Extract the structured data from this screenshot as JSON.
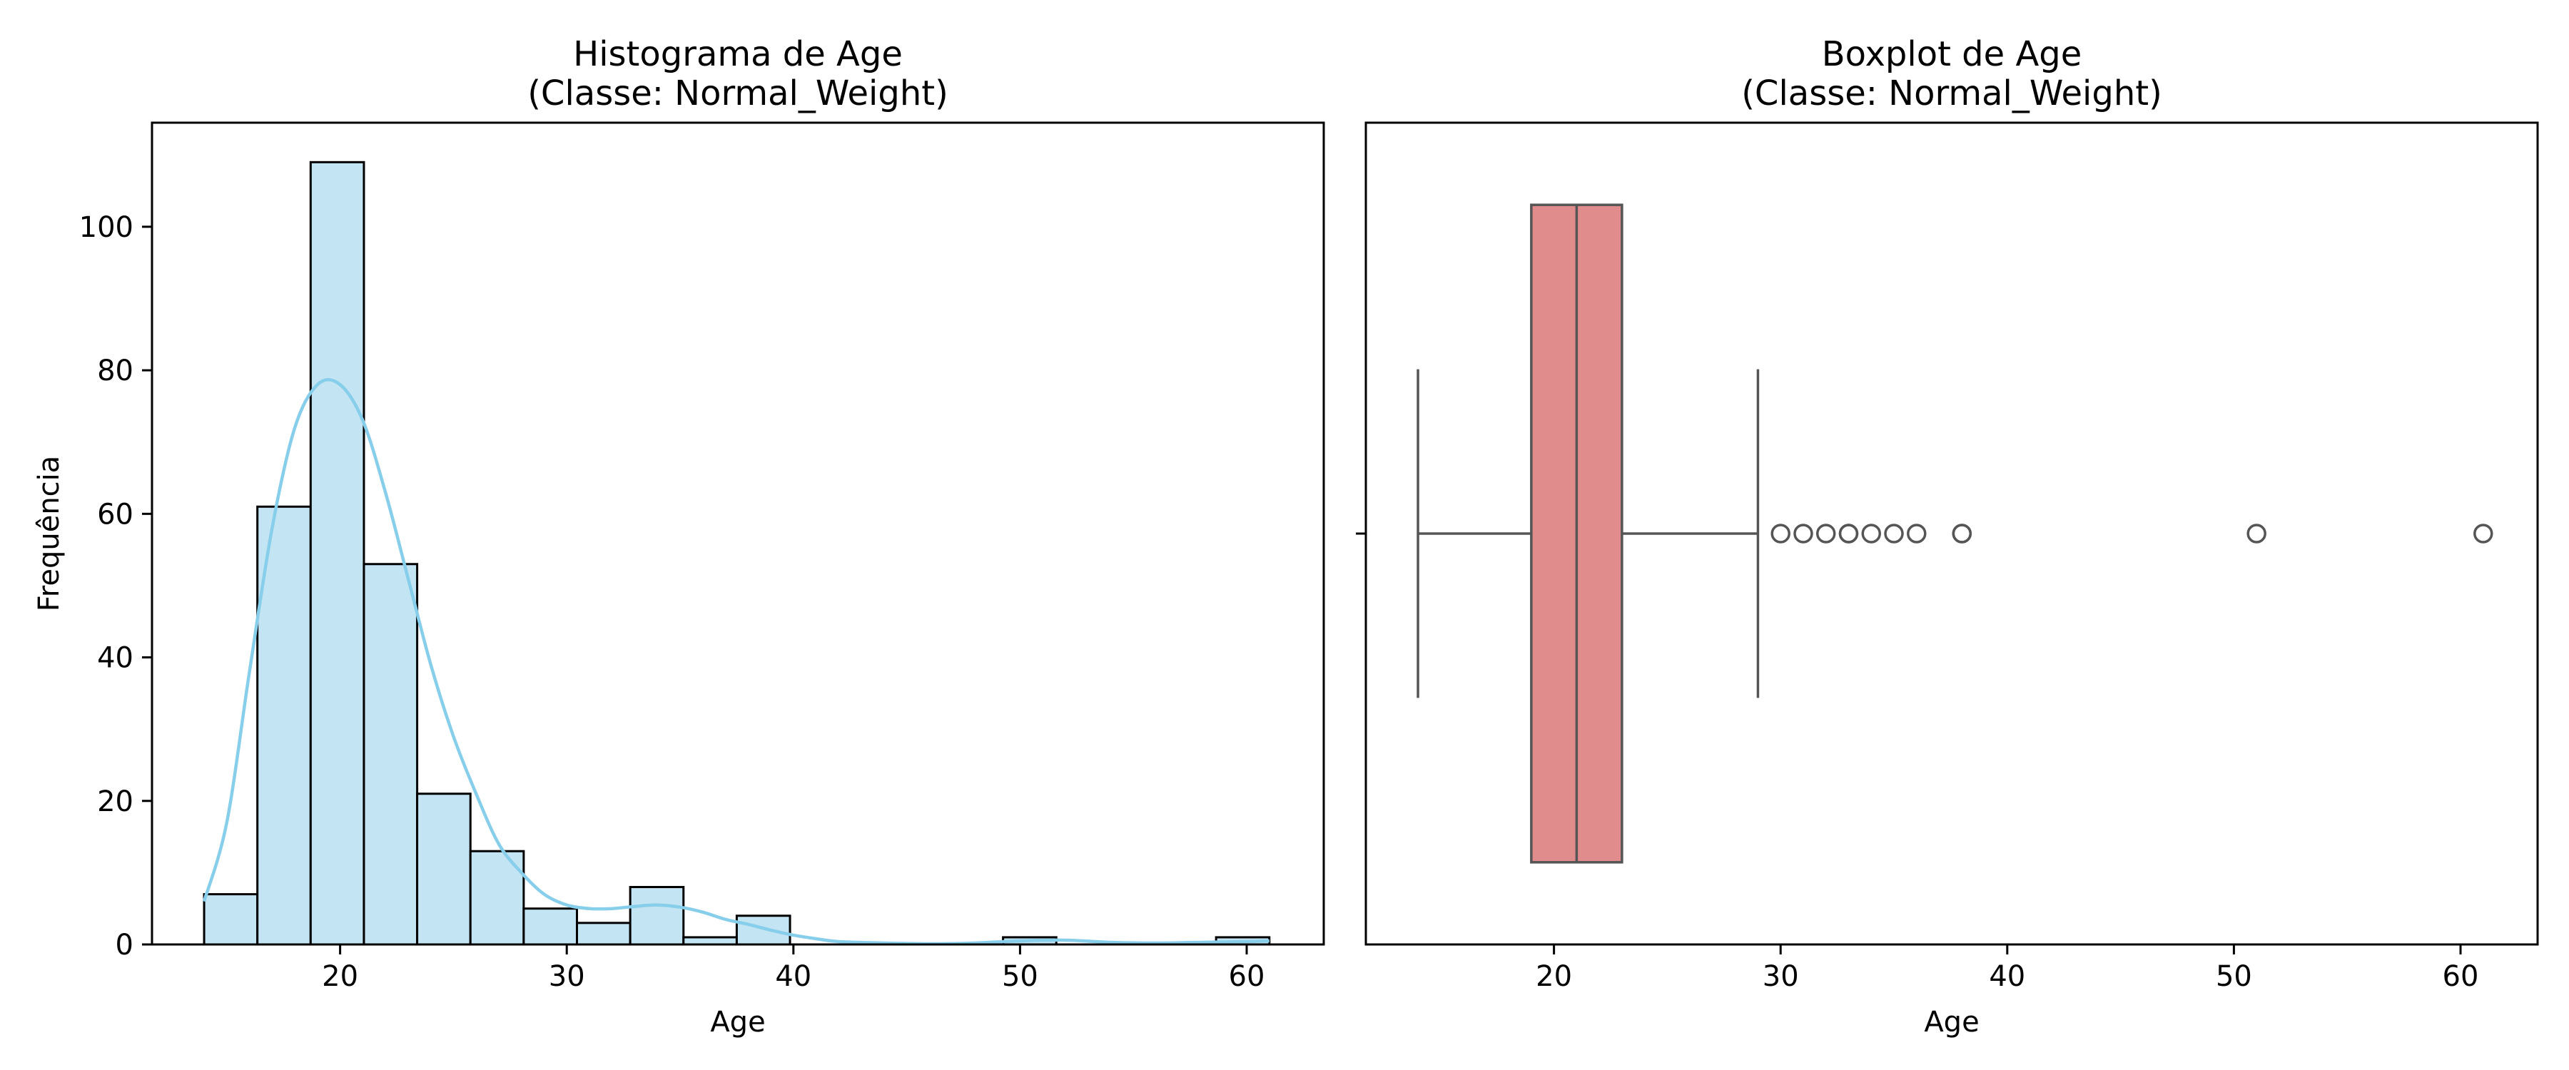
{
  "chart_data": [
    {
      "type": "bar",
      "title": "Histograma de Age\n(Classe: Normal_Weight)",
      "xlabel": "Age",
      "ylabel": "Frequência",
      "xlim": [
        11.7,
        63.4
      ],
      "ylim": [
        0,
        114.5
      ],
      "xticks": [
        20,
        30,
        40,
        50,
        60
      ],
      "yticks": [
        0,
        20,
        40,
        60,
        80,
        100
      ],
      "bin_edges": [
        14.0,
        16.35,
        18.7,
        21.05,
        23.4,
        25.75,
        28.1,
        30.45,
        32.8,
        35.15,
        37.5,
        39.85,
        42.2,
        44.55,
        46.9,
        49.25,
        51.6,
        53.95,
        56.3,
        58.65,
        61.0
      ],
      "values": [
        7,
        61,
        109,
        53,
        21,
        13,
        5,
        3,
        8,
        1,
        4,
        0,
        0,
        0,
        0,
        1,
        0,
        0,
        0,
        1
      ],
      "kde": {
        "x": [
          14,
          15,
          16,
          17,
          18,
          19,
          20,
          21,
          22,
          23,
          24,
          25,
          26,
          27,
          28,
          29,
          30,
          31,
          32,
          33,
          34,
          35,
          36,
          37,
          38,
          39,
          40,
          41,
          42,
          44,
          46,
          48,
          50,
          52,
          54,
          56,
          58,
          60,
          61
        ],
        "y": [
          6,
          17,
          38,
          58,
          72,
          78,
          78,
          73,
          63,
          51,
          39,
          29,
          21,
          14,
          10,
          7,
          5.5,
          5,
          5,
          5.3,
          5.5,
          5.2,
          4.5,
          3.5,
          2.8,
          2,
          1.3,
          0.8,
          0.4,
          0.2,
          0.1,
          0.2,
          0.5,
          0.6,
          0.3,
          0.2,
          0.3,
          0.4,
          0.5
        ]
      },
      "colors": {
        "bar_fill": "#c3e4f2",
        "bar_edge": "#000000",
        "kde": "#87ceeb"
      }
    },
    {
      "type": "box",
      "title": "Boxplot de Age\n(Classe: Normal_Weight)",
      "xlabel": "Age",
      "xlim": [
        11.7,
        63.4
      ],
      "xticks": [
        20,
        30,
        40,
        50,
        60
      ],
      "whisker_low": 14,
      "q1": 19,
      "median": 21,
      "q3": 23,
      "whisker_high": 29,
      "outliers": [
        30,
        31,
        32,
        33,
        33,
        34,
        35,
        36,
        38,
        38,
        51,
        61
      ],
      "colors": {
        "box_fill": "#e08c8c",
        "lines": "#555555"
      }
    }
  ]
}
